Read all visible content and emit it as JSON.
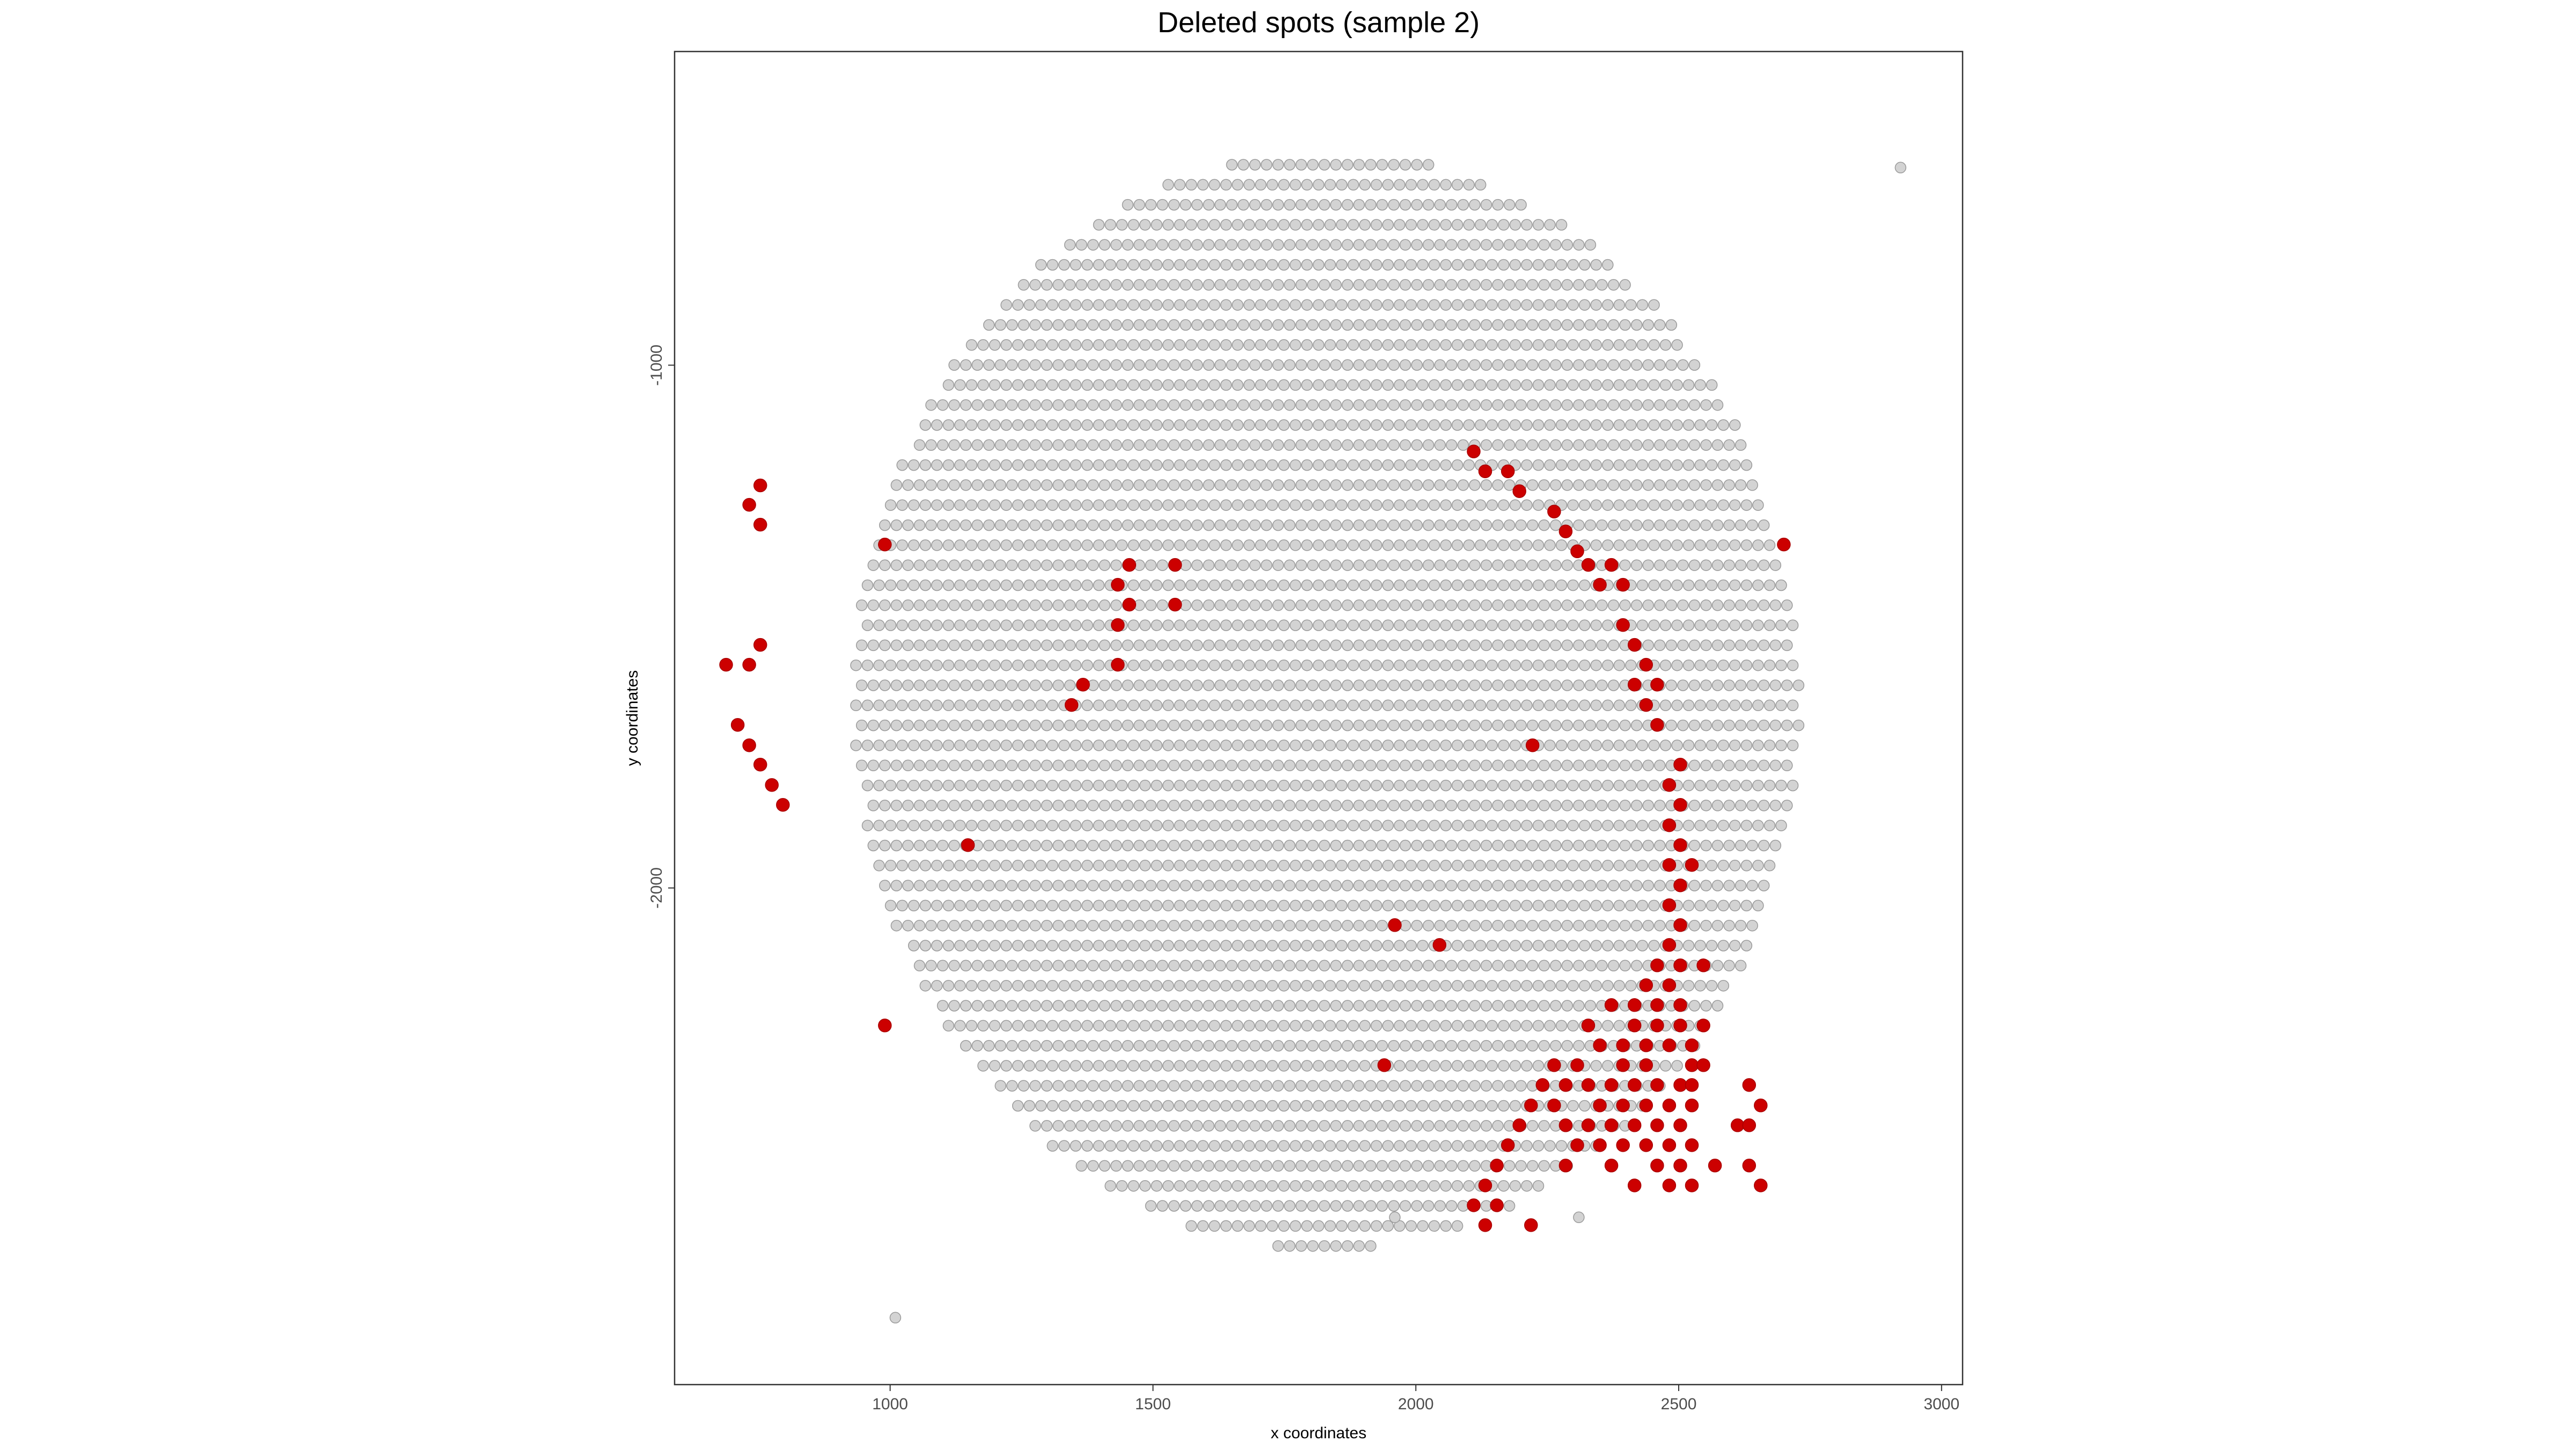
{
  "chart_data": {
    "type": "scatter",
    "title": "Deleted spots (sample 2)",
    "xlabel": "x coordinates",
    "ylabel": "y coordinates",
    "xlim": [
      590,
      3040
    ],
    "ylim": [
      -2950,
      -400
    ],
    "xticks": [
      1000,
      1500,
      2000,
      2500,
      3000
    ],
    "yticks": [
      -1000,
      -2000
    ],
    "grid": false,
    "legend": "none",
    "grid_spacing": {
      "dx": 22,
      "dy": 38.3
    },
    "tissue_grid_center": [
      1831,
      -1641
    ],
    "tissue_grid_radii": [
      900,
      1050
    ],
    "series": [
      {
        "color": "#d3d3d3",
        "stroke": "#9a9a9a",
        "extra_points": [
          [
            2922,
            -622
          ],
          [
            1010,
            -2822
          ],
          [
            1960,
            -2630
          ],
          [
            2310,
            -2630
          ]
        ]
      },
      {
        "color": "#cc0000",
        "stroke": "#aa0000",
        "points": [
          [
            753,
            -1230
          ],
          [
            732,
            -1267
          ],
          [
            753,
            -1305
          ],
          [
            732,
            -1573
          ],
          [
            688,
            -1573
          ],
          [
            753,
            -1535
          ],
          [
            710,
            -1688
          ],
          [
            732,
            -1727
          ],
          [
            753,
            -1764
          ],
          [
            775,
            -1803
          ],
          [
            796,
            -1841
          ],
          [
            990,
            -1343
          ],
          [
            1148,
            -1918
          ],
          [
            990,
            -2263
          ],
          [
            1455,
            -1382
          ],
          [
            1433,
            -1420
          ],
          [
            1455,
            -1458
          ],
          [
            1433,
            -1497
          ],
          [
            1433,
            -1573
          ],
          [
            1542,
            -1382
          ],
          [
            1542,
            -1458
          ],
          [
            1367,
            -1611
          ],
          [
            1345,
            -1650
          ],
          [
            2110,
            -1165
          ],
          [
            2132,
            -1203
          ],
          [
            2175,
            -1203
          ],
          [
            2197,
            -1241
          ],
          [
            2263,
            -1280
          ],
          [
            2285,
            -1318
          ],
          [
            2307,
            -1356
          ],
          [
            2328,
            -1382
          ],
          [
            2350,
            -1420
          ],
          [
            2372,
            -1382
          ],
          [
            2394,
            -1420
          ],
          [
            2394,
            -1497
          ],
          [
            2416,
            -1535
          ],
          [
            2438,
            -1573
          ],
          [
            2416,
            -1611
          ],
          [
            2459,
            -1611
          ],
          [
            2438,
            -1650
          ],
          [
            2459,
            -1688
          ],
          [
            2222,
            -1727
          ],
          [
            2503,
            -1764
          ],
          [
            2482,
            -1803
          ],
          [
            2503,
            -1841
          ],
          [
            2482,
            -1880
          ],
          [
            2503,
            -1918
          ],
          [
            2482,
            -1956
          ],
          [
            2525,
            -1956
          ],
          [
            2482,
            -2033
          ],
          [
            2503,
            -1995
          ],
          [
            2503,
            -2071
          ],
          [
            2482,
            -2109
          ],
          [
            2459,
            -2148
          ],
          [
            2503,
            -2148
          ],
          [
            2547,
            -2148
          ],
          [
            2438,
            -2186
          ],
          [
            2482,
            -2186
          ],
          [
            2372,
            -2224
          ],
          [
            2416,
            -2224
          ],
          [
            2459,
            -2224
          ],
          [
            2503,
            -2224
          ],
          [
            2328,
            -2263
          ],
          [
            2416,
            -2263
          ],
          [
            2459,
            -2263
          ],
          [
            2503,
            -2263
          ],
          [
            2547,
            -2263
          ],
          [
            2350,
            -2301
          ],
          [
            2394,
            -2301
          ],
          [
            2438,
            -2301
          ],
          [
            2482,
            -2301
          ],
          [
            2525,
            -2301
          ],
          [
            2263,
            -2339
          ],
          [
            2307,
            -2339
          ],
          [
            2394,
            -2339
          ],
          [
            2438,
            -2339
          ],
          [
            2525,
            -2339
          ],
          [
            2547,
            -2339
          ],
          [
            2241,
            -2377
          ],
          [
            2285,
            -2377
          ],
          [
            2328,
            -2377
          ],
          [
            2372,
            -2377
          ],
          [
            2416,
            -2377
          ],
          [
            2459,
            -2377
          ],
          [
            2503,
            -2377
          ],
          [
            2525,
            -2377
          ],
          [
            2634,
            -2377
          ],
          [
            2219,
            -2416
          ],
          [
            2263,
            -2416
          ],
          [
            2350,
            -2416
          ],
          [
            2394,
            -2416
          ],
          [
            2438,
            -2416
          ],
          [
            2482,
            -2416
          ],
          [
            2525,
            -2416
          ],
          [
            2656,
            -2416
          ],
          [
            2197,
            -2454
          ],
          [
            2285,
            -2454
          ],
          [
            2328,
            -2454
          ],
          [
            2372,
            -2454
          ],
          [
            2416,
            -2454
          ],
          [
            2459,
            -2454
          ],
          [
            2503,
            -2454
          ],
          [
            2612,
            -2454
          ],
          [
            2634,
            -2454
          ],
          [
            2175,
            -2492
          ],
          [
            2307,
            -2492
          ],
          [
            2350,
            -2492
          ],
          [
            2394,
            -2492
          ],
          [
            2438,
            -2492
          ],
          [
            2482,
            -2492
          ],
          [
            2525,
            -2492
          ],
          [
            2154,
            -2531
          ],
          [
            2285,
            -2531
          ],
          [
            2372,
            -2531
          ],
          [
            2459,
            -2531
          ],
          [
            2503,
            -2531
          ],
          [
            2569,
            -2531
          ],
          [
            2634,
            -2531
          ],
          [
            2132,
            -2569
          ],
          [
            2416,
            -2569
          ],
          [
            2482,
            -2569
          ],
          [
            2525,
            -2569
          ],
          [
            2656,
            -2569
          ],
          [
            2110,
            -2607
          ],
          [
            2154,
            -2607
          ],
          [
            2132,
            -2645
          ],
          [
            2219,
            -2645
          ],
          [
            2700,
            -1343
          ],
          [
            1960,
            -2071
          ],
          [
            2045,
            -2109
          ],
          [
            1940,
            -2339
          ]
        ]
      }
    ]
  }
}
